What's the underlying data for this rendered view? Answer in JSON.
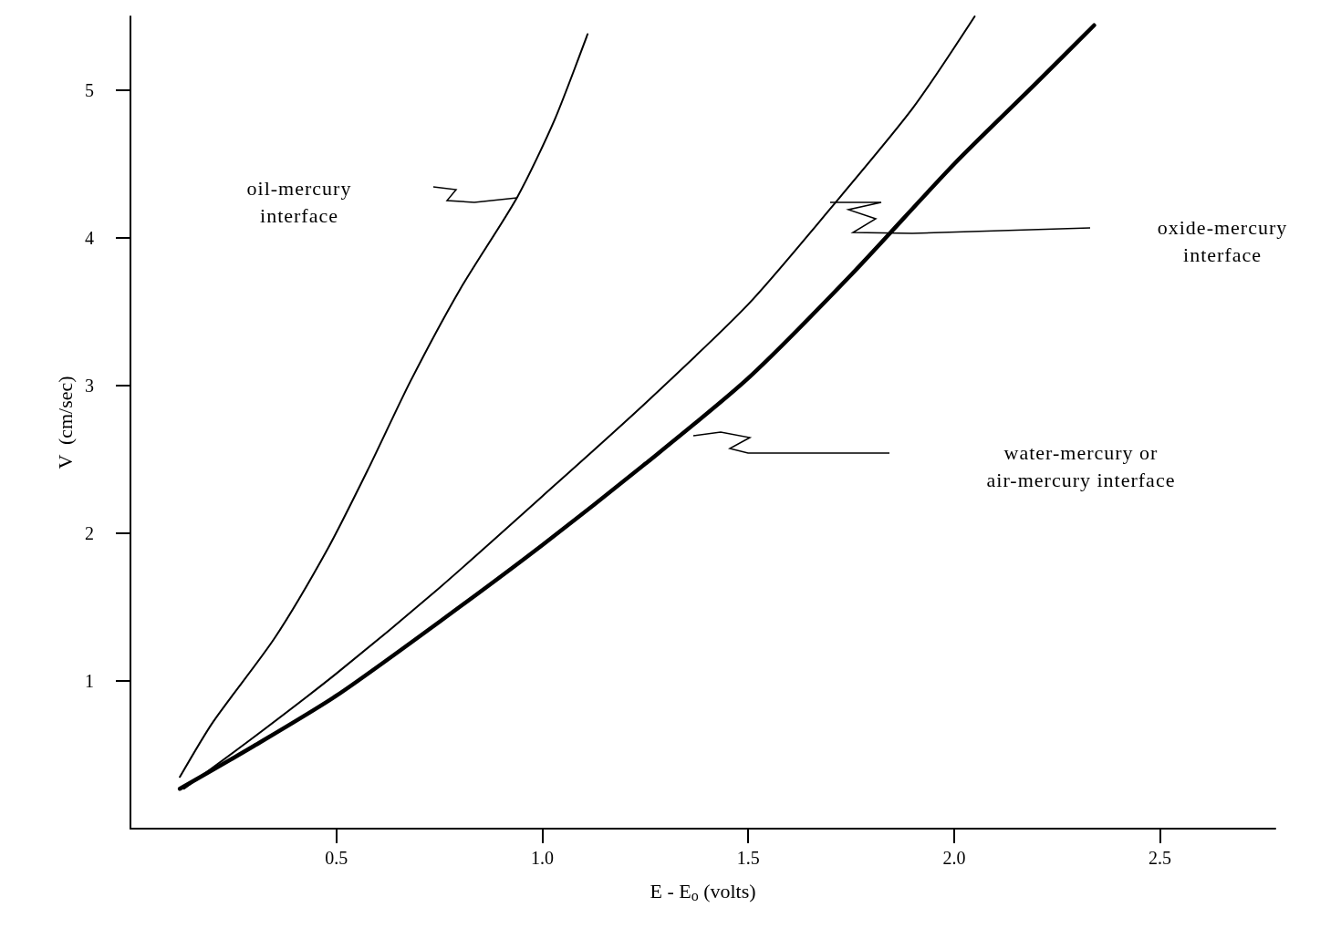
{
  "chart_data": {
    "type": "line",
    "xlabel": "E - E$_{o}$ (volts)",
    "ylabel": "V  (cm/sec)",
    "xlim": [
      0,
      2.78
    ],
    "ylim": [
      0,
      5.5
    ],
    "xticks": [
      0.5,
      {
        "value": 1,
        "label": "1.0"
      },
      1.5,
      {
        "value": 2,
        "label": "2.0"
      },
      2.5
    ],
    "yticks": [
      1,
      2,
      3,
      4,
      5
    ],
    "grid": false,
    "marker": "none",
    "line_style": "solid",
    "series": [
      {
        "color": "#000000",
        "x": [
          0.12,
          0.2,
          0.35,
          0.48,
          0.58,
          0.68,
          0.8,
          0.94,
          1.03,
          1.11
        ],
        "values": [
          0.35,
          0.72,
          1.29,
          1.9,
          2.45,
          3.03,
          3.65,
          4.28,
          4.8,
          5.38
        ]
      },
      {
        "color": "#000000",
        "x": [
          0.13,
          0.3,
          0.5,
          0.75,
          1.0,
          1.25,
          1.5,
          1.7,
          1.9,
          2.05
        ],
        "values": [
          0.27,
          0.62,
          1.05,
          1.63,
          2.25,
          2.88,
          3.55,
          4.2,
          4.88,
          5.5
        ]
      },
      {
        "color": "#000000",
        "x": [
          0.12,
          0.3,
          0.5,
          0.75,
          1.0,
          1.25,
          1.5,
          1.75,
          2.0,
          2.2,
          2.34
        ],
        "values": [
          0.27,
          0.56,
          0.9,
          1.4,
          1.92,
          2.47,
          3.05,
          3.75,
          4.5,
          5.05,
          5.44
        ]
      }
    ],
    "annotations": [
      "oil-mercury\ninterface",
      "oxide-mercury\ninterface",
      "water-mercury or\nair-mercury interface"
    ]
  }
}
